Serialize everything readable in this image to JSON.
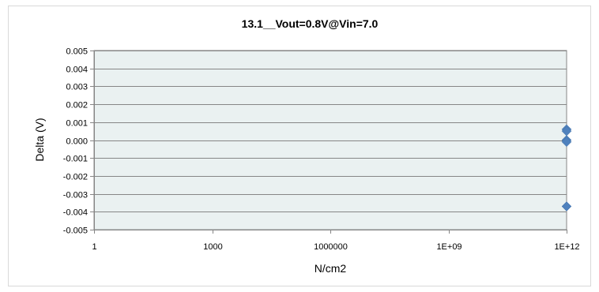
{
  "chart_data": {
    "type": "scatter",
    "title": "13.1__Vout=0.8V@Vin=7.0",
    "xlabel": "N/cm2",
    "ylabel": "Delta (V)",
    "x_scale": "log",
    "xlim": [
      1,
      1000000000000.0
    ],
    "ylim": [
      -0.005,
      0.005
    ],
    "x_ticks": [
      {
        "value": 1,
        "label": "1"
      },
      {
        "value": 1000,
        "label": "1000"
      },
      {
        "value": 1000000,
        "label": "1000000"
      },
      {
        "value": 1000000000,
        "label": "1E+09"
      },
      {
        "value": 1000000000000,
        "label": "1E+12"
      }
    ],
    "y_ticks": [
      {
        "value": 0.005,
        "label": "0.005"
      },
      {
        "value": 0.004,
        "label": "0.004"
      },
      {
        "value": 0.003,
        "label": "0.003"
      },
      {
        "value": 0.002,
        "label": "0.002"
      },
      {
        "value": 0.001,
        "label": "0.001"
      },
      {
        "value": 0.0,
        "label": "0.000"
      },
      {
        "value": -0.001,
        "label": "-0.001"
      },
      {
        "value": -0.002,
        "label": "-0.002"
      },
      {
        "value": -0.003,
        "label": "-0.003"
      },
      {
        "value": -0.004,
        "label": "-0.004"
      },
      {
        "value": -0.005,
        "label": "-0.005"
      }
    ],
    "series": [
      {
        "marker": "diamond",
        "color": "#4f81bd",
        "points": [
          {
            "x": 1000000000000,
            "y": 0.0006
          },
          {
            "x": 1000000000000,
            "y": 0.0005
          },
          {
            "x": 1000000000000,
            "y": 0.0
          },
          {
            "x": 1000000000000,
            "y": -0.0001
          },
          {
            "x": 1000000000000,
            "y": -0.0037
          }
        ]
      }
    ],
    "grid": true,
    "plot_background": "#eaf1f1",
    "gridline_color": "#868686"
  }
}
